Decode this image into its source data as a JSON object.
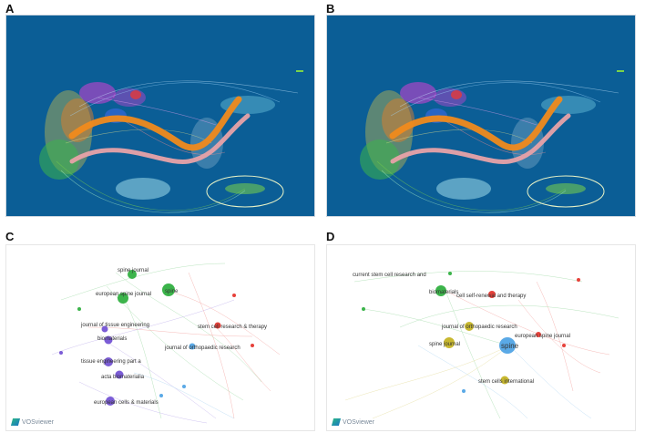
{
  "panels": {
    "A": {
      "label": "A"
    },
    "B": {
      "label": "B"
    },
    "C": {
      "label": "C",
      "logo_text": "VOSviewer"
    },
    "D": {
      "label": "D",
      "logo_text": "VOSviewer"
    }
  },
  "colors": {
    "dual_bg": "#0b5e96",
    "arc_orange": "#f08a1c",
    "arc_pink": "#e8a2a8",
    "cluster_green": "#3cb44b",
    "cluster_red": "#e6413a",
    "cluster_blue": "#5aa9e6",
    "cluster_purple": "#7b5cd6",
    "cluster_yellow": "#c8b830"
  },
  "network_C": {
    "nodes": [
      {
        "label": "spine journal",
        "cluster": "green"
      },
      {
        "label": "european spine journal",
        "cluster": "green"
      },
      {
        "label": "spine",
        "cluster": "green"
      },
      {
        "label": "journal of tissue engineering",
        "cluster": "purple"
      },
      {
        "label": "biomaterials",
        "cluster": "purple"
      },
      {
        "label": "stem cell research & therapy",
        "cluster": "red"
      },
      {
        "label": "journal of orthopaedic research",
        "cluster": "blue"
      },
      {
        "label": "tissue engineering part a",
        "cluster": "purple"
      },
      {
        "label": "acta biomaterialia",
        "cluster": "purple"
      },
      {
        "label": "european cells & materials",
        "cluster": "purple"
      }
    ]
  },
  "network_D": {
    "nodes": [
      {
        "label": "current stem cell research and",
        "cluster": "green"
      },
      {
        "label": "biomaterials",
        "cluster": "green"
      },
      {
        "label": "cell self-renewal and therapy",
        "cluster": "red"
      },
      {
        "label": "journal of orthopaedic research",
        "cluster": "yellow"
      },
      {
        "label": "spine journal",
        "cluster": "yellow"
      },
      {
        "label": "spine",
        "cluster": "blue"
      },
      {
        "label": "european spine journal",
        "cluster": "red"
      },
      {
        "label": "stem cells international",
        "cluster": "yellow"
      }
    ]
  }
}
